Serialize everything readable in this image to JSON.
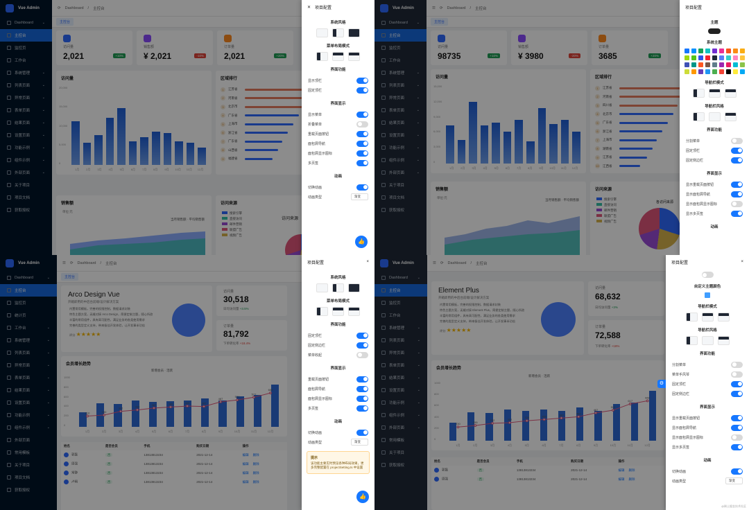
{
  "app": {
    "logo_text": "Vue Admin"
  },
  "q1": {
    "menu": [
      "Dashboard",
      "主控台",
      "监控页",
      "工作台",
      "系统管理",
      "列表页面",
      "异常页面",
      "表单页面",
      "结果页面",
      "设置页面",
      "功能示例",
      "组件示例",
      "外部页面",
      "关于项目",
      "项目文档",
      "获取授权"
    ],
    "breadcrumb": {
      "home": "Dashboard",
      "sep": "/",
      "current": "主控台"
    },
    "tab": "主控台",
    "stats": [
      {
        "label": "访问量",
        "value": "2,021",
        "badge": "+10%",
        "color": "#2f6bff"
      },
      {
        "label": "销售额",
        "value": "¥ 2,021",
        "badge": "-10%",
        "color": "#8a4bff"
      },
      {
        "label": "订单量",
        "value": "2,021",
        "badge": "+20%",
        "color": "#ff8a1f"
      }
    ],
    "visits_title": "访问量",
    "visits_y": [
      "20,000",
      "15,000",
      "10,000",
      "5,000",
      "0"
    ],
    "months": [
      "1月",
      "2月",
      "3月",
      "4月",
      "5月",
      "6月",
      "7月",
      "8月",
      "9月",
      "10月",
      "11月",
      "12月"
    ],
    "region_title": "区域排行",
    "regions": [
      "江苏省",
      "河南省",
      "北京市",
      "广东省",
      "上海市",
      "浙江省",
      "广东省",
      "山西省",
      "福建省"
    ],
    "sales_title": "销售额",
    "sales_unit": "单位:元",
    "sales_legend": [
      "当月销售额",
      "平均销售额"
    ],
    "source_title": "访问来源",
    "source_sub": "访问来源",
    "sources": [
      "搜索引擎",
      "直接访问",
      "邮件营销",
      "联盟广告",
      "视频广告"
    ],
    "drawer": {
      "title": "项目配置",
      "theme_section": "系统风格",
      "layout_section": "菜单布局模式",
      "func_section": "界面功能",
      "func_rows": [
        "显示顶栏",
        "固定顶栏"
      ],
      "display_section": "界面显示",
      "display_rows": [
        "显示菜单",
        "折叠菜单",
        "重载页面按钮",
        "面包屑导航",
        "面包屑显示图标",
        "多页签"
      ],
      "anim_section": "动画",
      "anim_rows": [
        "切换动画"
      ],
      "anim_type_label": "动画类型",
      "anim_type": "渐变"
    }
  },
  "q2": {
    "menu": [
      "Dashboard",
      "主控台",
      "监控页",
      "工作台",
      "系统管理",
      "列表页面",
      "异常页面",
      "表单页面",
      "结果页面",
      "设置页面",
      "功能示例",
      "组件示例",
      "外部页面",
      "关于项目",
      "项目文档",
      "获取授权"
    ],
    "breadcrumb": {
      "home": "Dashboard",
      "sep": "/",
      "current": "主控台"
    },
    "tab": "主控台",
    "stats": [
      {
        "label": "访问量",
        "value": "98735",
        "badge": "+10%",
        "color": "#2f6bff"
      },
      {
        "label": "销售额",
        "value": "¥ 3980",
        "badge": "-20%",
        "color": "#8a4bff"
      },
      {
        "label": "订单量",
        "value": "3685",
        "badge": "+20%",
        "color": "#ff8a1f"
      }
    ],
    "visits_title": "访问量",
    "visits_y": [
      "15,000",
      "12,000",
      "9,000",
      "6,000",
      "3,000",
      "0"
    ],
    "region_title": "区域排行",
    "regions": [
      "江苏省",
      "河南省",
      "四川省",
      "北京市",
      "广东省",
      "浙江省",
      "上海市",
      "湖南省",
      "江苏省",
      "江西省"
    ],
    "sales_title": "销售额",
    "sales_unit": "单位:元",
    "sales_legend": [
      "当月销售额",
      "平均销售额"
    ],
    "source_title": "访问来源",
    "source_sub": "各访问来源",
    "sources": [
      "搜索引擎",
      "直接访问",
      "邮件营销",
      "联盟广告",
      "视频广告"
    ],
    "drawer": {
      "title": "项目配置",
      "theme_section": "主题",
      "color_section": "系统主题",
      "nav_mode": "导航栏模式",
      "nav_style": "导航栏风格",
      "func_section": "界面功能",
      "func_rows": [
        "分割菜单",
        "固定顶栏",
        "固定侧边栏"
      ],
      "display_section": "界面显示",
      "display_rows": [
        "显示重载页面按钮",
        "显示面包屑导航",
        "显示面包屑显示图标",
        "显示多页签"
      ],
      "anim_section": "动画"
    }
  },
  "q3": {
    "menu": [
      "Dashboard",
      "主控台",
      "监控页",
      "统计页",
      "工作台",
      "系统管理",
      "列表页面",
      "异常页面",
      "表单页面",
      "结果页面",
      "设置页面",
      "功能示例",
      "组件示例",
      "外部页面",
      "常用模板",
      "关于项目",
      "项目文档",
      "获取授权"
    ],
    "breadcrumb": {
      "home": "Dashboard",
      "sep": "/",
      "current": "主控台"
    },
    "tab": "主控台",
    "hero_title": "Arco Design Vue",
    "hero_sub": "开箱即用的中后台前端/设计解决方案",
    "hero_bullets": [
      "内置常用模板，完善的权限控制，数据请求封装",
      "特色主题方案，无缝对接 Arco Design，简便定制主题，随心所欲",
      "丰富的常用组件，具有高可配性，满足业务的各类使用需求",
      "完善的类型定义支持，带来极佳开发体验，让开发事半功倍"
    ],
    "hero_rating": "评分",
    "stat1": {
      "label": "访问量",
      "value": "30,518",
      "foot": "日均访问量",
      "badge": "+3.5%"
    },
    "stat2": {
      "label": "订单量",
      "value": "81,792",
      "foot": "下单转化率",
      "badge": "+18.4%"
    },
    "growth_title": "会员增长趋势",
    "growth_legend": [
      "新增会员",
      "活跃"
    ],
    "growth_y": [
      "1000",
      "800",
      "600",
      "400",
      "200",
      "0"
    ],
    "growth_values": [
      "210",
      "230",
      "302",
      "330",
      "367",
      "386",
      "405",
      "397",
      "487",
      "524",
      "577",
      "660"
    ],
    "months": [
      "1月",
      "2月",
      "3月",
      "4月",
      "5月",
      "6月",
      "7月",
      "8月",
      "9月",
      "10月",
      "11月",
      "12月"
    ],
    "table_head": [
      "姓名",
      "是否会员",
      "手机",
      "购买日期",
      "操作"
    ],
    "table_rows": [
      {
        "name": "郭磊",
        "vip": "否",
        "phone": "13813813234",
        "date": "2021-12-14",
        "edit": "编辑",
        "del": "删除"
      },
      {
        "name": "周强",
        "vip": "否",
        "phone": "13813813234",
        "date": "2021-12-14",
        "edit": "编辑",
        "del": "删除"
      },
      {
        "name": "常静",
        "vip": "否",
        "phone": "13813813234",
        "date": "2021-12-14",
        "edit": "编辑",
        "del": "删除"
      },
      {
        "name": "卢明",
        "vip": "否",
        "phone": "13813813234",
        "date": "2021-12-14",
        "edit": "编辑",
        "del": "删除"
      }
    ],
    "drawer": {
      "title": "项目配置",
      "theme_section": "系统风格",
      "layout_section": "菜单布局模式",
      "func_section": "界面功能",
      "func_rows": [
        "固定顶栏",
        "固定侧边栏",
        "菜单收起"
      ],
      "display_section": "界面显示",
      "display_rows": [
        "重载页面按钮",
        "面包屑导航",
        "面包屑显示图标",
        "多页签"
      ],
      "anim_section": "动画",
      "anim_rows": [
        "切换动画"
      ],
      "anim_type_label": "动画类型",
      "anim_type": "渐变",
      "tip_title": "提示",
      "tip_body": "该功能主要实时预览各种布局效果，更多完整配置在 projectSetting.ts 中设置"
    }
  },
  "q4": {
    "menu": [
      "Dashboard",
      "主控台",
      "监控页",
      "工作台",
      "系统管理",
      "列表页面",
      "异常页面",
      "表单页面",
      "结果页面",
      "设置页面",
      "功能示例",
      "组件示例",
      "外部页面",
      "常用模板",
      "关于项目",
      "获取授权"
    ],
    "breadcrumb": {
      "home": "Dashboard",
      "sep": "/",
      "current": "主控台"
    },
    "tab": "主控台",
    "hero_title": "Element Plus",
    "hero_sub": "开箱即用的中后台前端/设计解决方案",
    "hero_bullets": [
      "内置常用模板，完善的权限控制，数据请求封装",
      "特色主题方案，无缝对接 Element Plus，简便定制主题，随心所欲",
      "丰富的常用组件，具有高可配性，满足业务的各类使用需求",
      "完善的类型定义支持，带来极佳开发体验，让开发事半功倍"
    ],
    "hero_rating": "评分",
    "stat1": {
      "label": "访问量",
      "value": "68,632",
      "foot": "日均访问量",
      "badge": "+3%"
    },
    "stat2": {
      "label": "订单量",
      "value": "72,588",
      "foot": "下单转化率",
      "badge": "+18%"
    },
    "growth_title": "会员增长趋势",
    "growth_legend": [
      "新增会员",
      "活跃"
    ],
    "growth_y": [
      "1000",
      "800",
      "600",
      "400",
      "200",
      "0"
    ],
    "growth_values": [
      "230",
      "255",
      "292",
      "302",
      "335",
      "356",
      "380",
      "402",
      "467",
      "512",
      "617",
      "669"
    ],
    "table_head": [
      "姓名",
      "是否会员",
      "手机",
      "购买日期",
      "操作"
    ],
    "table_rows": [
      {
        "name": "郭磊",
        "vip": "否",
        "phone": "13813813234",
        "date": "2021-12-14",
        "edit": "编辑",
        "del": "删除"
      },
      {
        "name": "周强",
        "vip": "否",
        "phone": "13813813234",
        "date": "2021-12-14",
        "edit": "编辑",
        "del": "删除"
      }
    ],
    "drawer": {
      "title": "项目配置",
      "color_section": "自定义主题颜色",
      "nav_mode": "导航栏模式",
      "nav_style": "导航栏风格",
      "func_section": "界面功能",
      "func_rows": [
        "分割菜单",
        "菜单手风琴",
        "固定顶栏",
        "固定侧边栏"
      ],
      "display_section": "界面显示",
      "display_rows": [
        "显示重载页面按钮",
        "显示面包屑导航",
        "显示面包屑显示图标",
        "显示多页签"
      ],
      "anim_section": "动画",
      "anim_rows": [
        "切换动画"
      ],
      "anim_type_label": "动画类型",
      "anim_type": "渐变",
      "watermark": "@稀土掘金技术社区"
    }
  }
}
